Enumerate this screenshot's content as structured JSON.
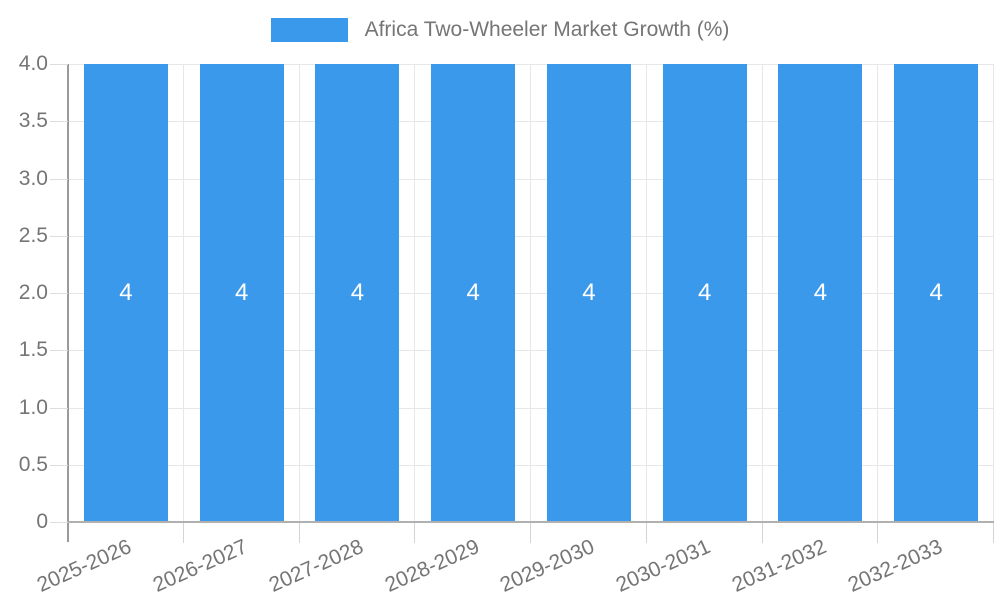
{
  "legend": {
    "label": "Africa Two-Wheeler Market Growth (%)",
    "swatch_color": "#3B99EB"
  },
  "chart_data": {
    "type": "bar",
    "title": "Africa Two-Wheeler Market Growth (%)",
    "categories": [
      "2025-2026",
      "2026-2027",
      "2027-2028",
      "2028-2029",
      "2029-2030",
      "2030-2031",
      "2031-2032",
      "2032-2033"
    ],
    "series": [
      {
        "name": "Africa Two-Wheeler Market Growth (%)",
        "values": [
          4,
          4,
          4,
          4,
          4,
          4,
          4,
          4
        ]
      }
    ],
    "bar_labels": [
      "4",
      "4",
      "4",
      "4",
      "4",
      "4",
      "4",
      "4"
    ],
    "xlabel": "",
    "ylabel": "",
    "ylim": [
      0,
      4
    ],
    "y_ticks": [
      {
        "value": 0,
        "label": "0"
      },
      {
        "value": 0.5,
        "label": "0.5"
      },
      {
        "value": 1,
        "label": "1.0"
      },
      {
        "value": 1.5,
        "label": "1.5"
      },
      {
        "value": 2,
        "label": "2.0"
      },
      {
        "value": 2.5,
        "label": "2.5"
      },
      {
        "value": 3,
        "label": "3.0"
      },
      {
        "value": 3.5,
        "label": "3.5"
      },
      {
        "value": 4,
        "label": "4.0"
      }
    ],
    "grid": true,
    "legend_position": "top-center",
    "bar_color": "#3B99EB",
    "bar_label_color": "#ffffff",
    "axis_text_color": "#757575",
    "grid_color": "#e7e7e7"
  }
}
